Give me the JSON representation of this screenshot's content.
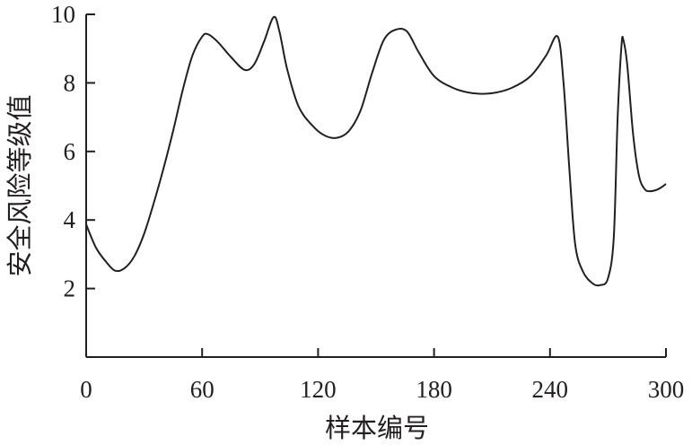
{
  "chart_data": {
    "type": "line",
    "title": "",
    "xlabel": "样本编号",
    "ylabel": "安全风险等级值",
    "xlim": [
      0,
      300
    ],
    "ylim": [
      0,
      10
    ],
    "xticks": [
      0,
      60,
      120,
      180,
      240,
      300
    ],
    "yticks": [
      2,
      4,
      6,
      8,
      10
    ],
    "xtick_labels": [
      "0",
      "60",
      "120",
      "180",
      "240",
      "300"
    ],
    "ytick_labels": [
      "2",
      "4",
      "6",
      "8",
      "10"
    ],
    "grid": false,
    "line_color": "#231f20",
    "series": [
      {
        "x": [
          0,
          5,
          10,
          15,
          20,
          25,
          30,
          35,
          40,
          45,
          50,
          55,
          60,
          63,
          68,
          75,
          82,
          87,
          92,
          97,
          100,
          104,
          110,
          118,
          124,
          130,
          136,
          142,
          148,
          154,
          160,
          166,
          172,
          180,
          190,
          200,
          210,
          220,
          230,
          238,
          244,
          247,
          250,
          253,
          257,
          262,
          266,
          270,
          273,
          275,
          277,
          278,
          280,
          283,
          286,
          289,
          292,
          296,
          300
        ],
        "y": [
          3.87,
          3.2,
          2.8,
          2.52,
          2.6,
          2.95,
          3.6,
          4.5,
          5.5,
          6.6,
          7.8,
          8.8,
          9.35,
          9.42,
          9.2,
          8.75,
          8.38,
          8.55,
          9.2,
          9.92,
          9.5,
          8.4,
          7.3,
          6.7,
          6.45,
          6.4,
          6.6,
          7.2,
          8.3,
          9.25,
          9.55,
          9.5,
          8.9,
          8.2,
          7.85,
          7.7,
          7.7,
          7.85,
          8.2,
          8.8,
          9.35,
          8.0,
          5.5,
          3.3,
          2.5,
          2.15,
          2.1,
          2.3,
          3.5,
          7.0,
          9.1,
          9.24,
          8.5,
          6.5,
          5.3,
          4.9,
          4.84,
          4.9,
          5.05
        ]
      }
    ]
  }
}
